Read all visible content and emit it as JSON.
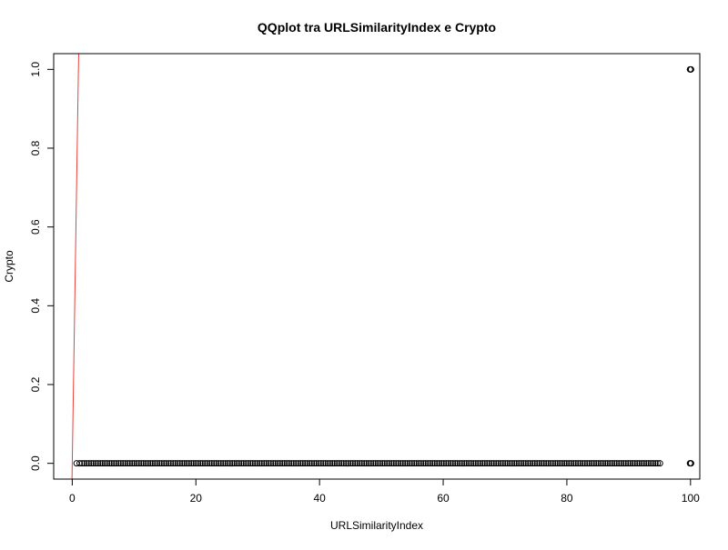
{
  "chart_data": {
    "type": "scatter",
    "title": "QQplot tra URLSimilarityIndex e Crypto",
    "xlabel": "URLSimilarityIndex",
    "ylabel": "Crypto",
    "xlim": [
      -3,
      101.5
    ],
    "ylim": [
      -0.04,
      1.04
    ],
    "x_ticks": [
      0,
      20,
      40,
      60,
      80,
      100
    ],
    "y_ticks": [
      0.0,
      0.2,
      0.4,
      0.6,
      0.8,
      1.0
    ],
    "x_tick_labels": [
      "0",
      "20",
      "40",
      "60",
      "80",
      "100"
    ],
    "y_tick_labels": [
      "0.0",
      "0.2",
      "0.4",
      "0.6",
      "0.8",
      "1.0"
    ],
    "grid": false,
    "series": [
      {
        "marker": "open-circle",
        "color": "#000000",
        "x_range": [
          0.7,
          95.4
        ],
        "y_value": 0,
        "description_points": "dense run of quantile points at Crypto = 0 spanning URLSimilarityIndex 0.7 to 95.4"
      },
      {
        "marker": "open-circle",
        "color": "#000000",
        "points": [
          [
            100,
            0
          ],
          [
            100,
            1
          ]
        ]
      }
    ],
    "reference_line": {
      "color": "#e8423a",
      "x": [
        0,
        1
      ],
      "y": [
        0,
        1
      ]
    }
  }
}
